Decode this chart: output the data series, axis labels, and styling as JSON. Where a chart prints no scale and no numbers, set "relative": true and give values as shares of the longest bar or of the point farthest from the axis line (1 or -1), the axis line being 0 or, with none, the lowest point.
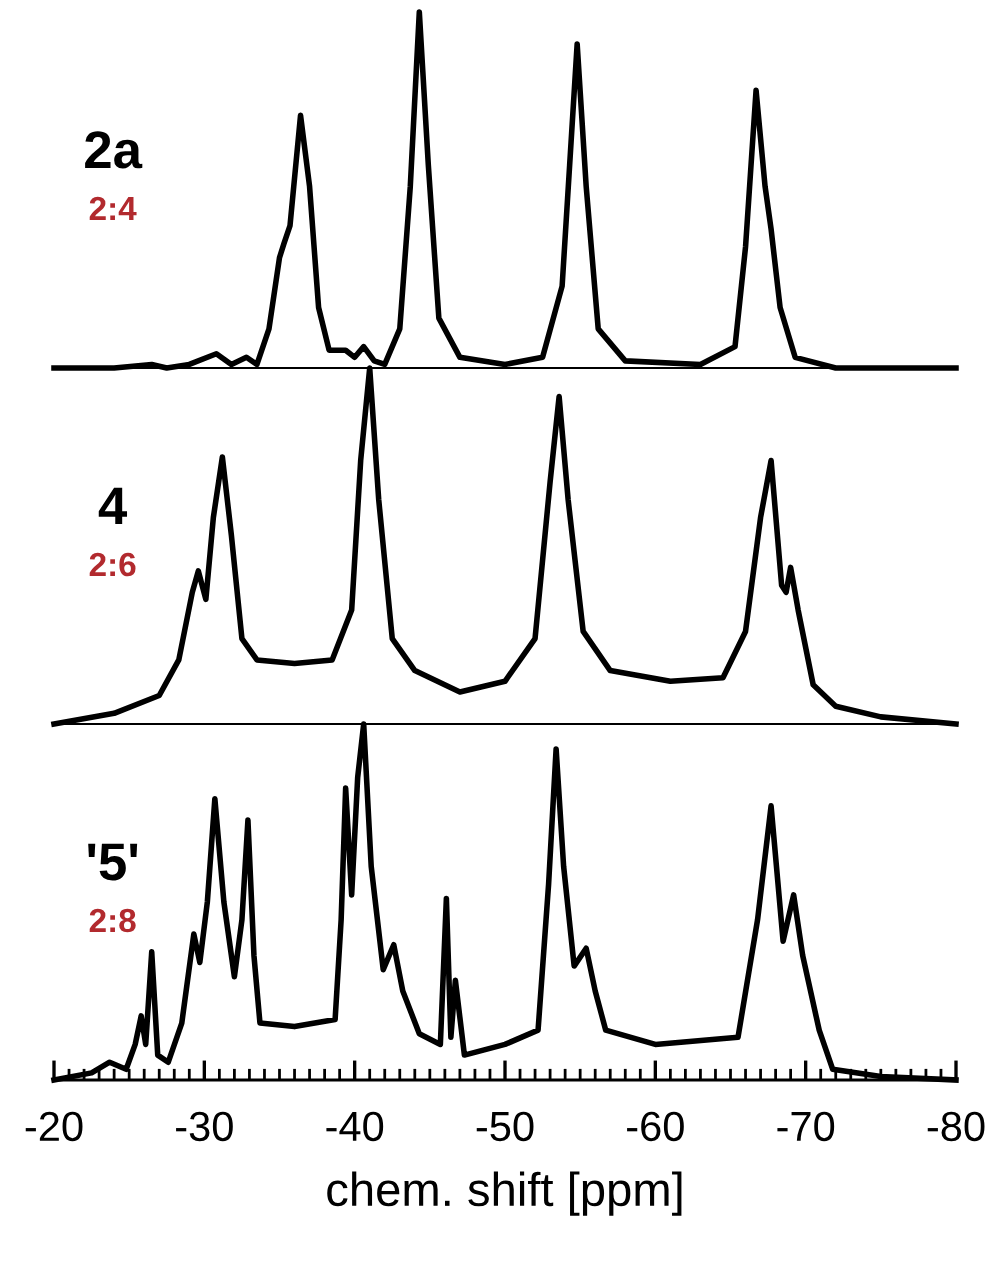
{
  "chart_data": [
    {
      "type": "line",
      "relative": true,
      "xlim": [
        -20,
        -80
      ],
      "tick_labels": false,
      "grid": false,
      "legend": false,
      "marker": "none",
      "line_style": "solid",
      "annotations": [
        "2a",
        "2:4"
      ],
      "series": [
        {
          "color": "#000000",
          "x": [
            -20,
            -24,
            -26.5,
            -27.5,
            -29,
            -30.8,
            -31.8,
            -32.8,
            -33.5,
            -34.3,
            -35.0,
            -35.3,
            -35.7,
            -36.4,
            -37.0,
            -37.6,
            -38.3,
            -39.4,
            -40.0,
            -40.6,
            -41.3,
            -42.0,
            -43.0,
            -43.7,
            -44.3,
            -44.9,
            -45.6,
            -47,
            -50,
            -52.5,
            -53.8,
            -54.3,
            -54.8,
            -55.4,
            -56.2,
            -58,
            -63,
            -65.3,
            -66.0,
            -66.7,
            -67.3,
            -67.7,
            -68.3,
            -69.3,
            -72,
            -80
          ],
          "values": [
            0,
            0,
            0.01,
            0,
            0.01,
            0.04,
            0.01,
            0.03,
            0.01,
            0.11,
            0.31,
            0.35,
            0.4,
            0.71,
            0.51,
            0.17,
            0.05,
            0.05,
            0.03,
            0.06,
            0.02,
            0.01,
            0.11,
            0.51,
            1,
            0.57,
            0.14,
            0.03,
            0.01,
            0.03,
            0.23,
            0.57,
            0.91,
            0.51,
            0.11,
            0.02,
            0.01,
            0.06,
            0.34,
            0.78,
            0.51,
            0.39,
            0.17,
            0.03,
            0,
            0
          ]
        }
      ]
    },
    {
      "type": "line",
      "relative": true,
      "xlim": [
        -20,
        -80
      ],
      "tick_labels": false,
      "grid": false,
      "legend": false,
      "marker": "none",
      "line_style": "solid",
      "annotations": [
        "4",
        "2:6"
      ],
      "series": [
        {
          "color": "#000000",
          "x": [
            -20,
            -24,
            -27,
            -28.3,
            -29.2,
            -29.6,
            -30.1,
            -30.6,
            -31.2,
            -31.8,
            -32.5,
            -33.5,
            -36,
            -38.5,
            -39.8,
            -40.4,
            -41.0,
            -41.6,
            -42.5,
            -44,
            -47,
            -50,
            -52.0,
            -53.0,
            -53.6,
            -54.2,
            -55.2,
            -57,
            -61,
            -64.5,
            -66.0,
            -67.0,
            -67.7,
            -68.4,
            -68.7,
            -69.0,
            -69.5,
            -70.5,
            -72,
            -75,
            -80
          ],
          "values": [
            0,
            0.03,
            0.08,
            0.18,
            0.37,
            0.43,
            0.35,
            0.58,
            0.75,
            0.53,
            0.24,
            0.18,
            0.17,
            0.18,
            0.32,
            0.74,
            1,
            0.63,
            0.24,
            0.15,
            0.09,
            0.12,
            0.24,
            0.68,
            0.92,
            0.63,
            0.26,
            0.15,
            0.12,
            0.13,
            0.26,
            0.58,
            0.74,
            0.39,
            0.37,
            0.44,
            0.32,
            0.11,
            0.05,
            0.02,
            0
          ]
        }
      ]
    },
    {
      "type": "line",
      "relative": true,
      "xlim": [
        -20,
        -80
      ],
      "tick_labels": "x",
      "grid": false,
      "legend": false,
      "marker": "none",
      "line_style": "solid",
      "xlabel": "chem. shift [ppm]",
      "xticks": [
        -20,
        {
          "value": -21,
          "label": null
        },
        {
          "value": -22,
          "label": null
        },
        {
          "value": -23,
          "label": null
        },
        {
          "value": -24,
          "label": null
        },
        {
          "value": -25,
          "label": null
        },
        {
          "value": -26,
          "label": null
        },
        {
          "value": -27,
          "label": null
        },
        {
          "value": -28,
          "label": null
        },
        {
          "value": -29,
          "label": null
        },
        -30,
        {
          "value": -31,
          "label": null
        },
        {
          "value": -32,
          "label": null
        },
        {
          "value": -33,
          "label": null
        },
        {
          "value": -34,
          "label": null
        },
        {
          "value": -35,
          "label": null
        },
        {
          "value": -36,
          "label": null
        },
        {
          "value": -37,
          "label": null
        },
        {
          "value": -38,
          "label": null
        },
        {
          "value": -39,
          "label": null
        },
        -40,
        {
          "value": -41,
          "label": null
        },
        {
          "value": -42,
          "label": null
        },
        {
          "value": -43,
          "label": null
        },
        {
          "value": -44,
          "label": null
        },
        {
          "value": -45,
          "label": null
        },
        {
          "value": -46,
          "label": null
        },
        {
          "value": -47,
          "label": null
        },
        {
          "value": -48,
          "label": null
        },
        {
          "value": -49,
          "label": null
        },
        -50,
        {
          "value": -51,
          "label": null
        },
        {
          "value": -52,
          "label": null
        },
        {
          "value": -53,
          "label": null
        },
        {
          "value": -54,
          "label": null
        },
        {
          "value": -55,
          "label": null
        },
        {
          "value": -56,
          "label": null
        },
        {
          "value": -57,
          "label": null
        },
        {
          "value": -58,
          "label": null
        },
        {
          "value": -59,
          "label": null
        },
        -60,
        {
          "value": -61,
          "label": null
        },
        {
          "value": -62,
          "label": null
        },
        {
          "value": -63,
          "label": null
        },
        {
          "value": -64,
          "label": null
        },
        {
          "value": -65,
          "label": null
        },
        {
          "value": -66,
          "label": null
        },
        {
          "value": -67,
          "label": null
        },
        {
          "value": -68,
          "label": null
        },
        {
          "value": -69,
          "label": null
        },
        -70,
        {
          "value": -71,
          "label": null
        },
        {
          "value": -72,
          "label": null
        },
        {
          "value": -73,
          "label": null
        },
        {
          "value": -74,
          "label": null
        },
        {
          "value": -75,
          "label": null
        },
        {
          "value": -76,
          "label": null
        },
        {
          "value": -77,
          "label": null
        },
        {
          "value": -78,
          "label": null
        },
        {
          "value": -79,
          "label": null
        },
        -80
      ],
      "annotations": [
        "'5'",
        "2:8"
      ],
      "series": [
        {
          "color": "#000000",
          "x": [
            -20,
            -22.5,
            -23.7,
            -24.8,
            -25.4,
            -25.8,
            -26.1,
            -26.5,
            -26.9,
            -27.6,
            -28.5,
            -29.3,
            -29.7,
            -30.2,
            -30.7,
            -31.3,
            -32.0,
            -32.5,
            -32.9,
            -33.3,
            -33.7,
            -36,
            -38.7,
            -39.1,
            -39.4,
            -39.8,
            -40.2,
            -40.6,
            -41.1,
            -41.9,
            -42.6,
            -43.2,
            -44.3,
            -45.7,
            -46.1,
            -46.4,
            -46.7,
            -47.3,
            -50,
            -52.2,
            -52.9,
            -53.4,
            -53.9,
            -54.6,
            -55.4,
            -56.0,
            -56.7,
            -60,
            -65.5,
            -66.8,
            -67.7,
            -68.5,
            -69.2,
            -69.8,
            -70.9,
            -71.8,
            -75,
            -80
          ],
          "values": [
            0,
            0.02,
            0.05,
            0.03,
            0.1,
            0.18,
            0.1,
            0.36,
            0.07,
            0.05,
            0.16,
            0.41,
            0.33,
            0.5,
            0.79,
            0.5,
            0.29,
            0.45,
            0.73,
            0.35,
            0.16,
            0.15,
            0.17,
            0.45,
            0.82,
            0.52,
            0.85,
            1,
            0.6,
            0.31,
            0.38,
            0.25,
            0.13,
            0.1,
            0.51,
            0.12,
            0.28,
            0.07,
            0.1,
            0.14,
            0.55,
            0.93,
            0.6,
            0.32,
            0.37,
            0.25,
            0.14,
            0.1,
            0.12,
            0.45,
            0.77,
            0.39,
            0.52,
            0.35,
            0.14,
            0.03,
            0.01,
            0
          ]
        }
      ]
    }
  ]
}
